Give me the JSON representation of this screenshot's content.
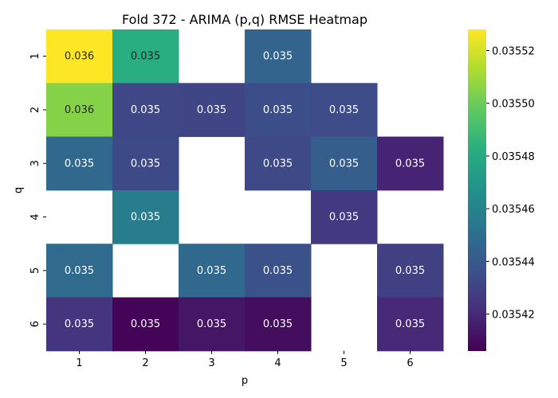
{
  "chart_data": {
    "type": "heatmap",
    "title": "Fold 372 - ARIMA (p,q) RMSE Heatmap",
    "xlabel": "p",
    "ylabel": "q",
    "x_categories": [
      "1",
      "2",
      "3",
      "4",
      "5",
      "6"
    ],
    "y_categories": [
      "1",
      "2",
      "3",
      "4",
      "5",
      "6"
    ],
    "values": [
      [
        0.035528,
        0.035482,
        null,
        0.035445,
        null,
        null
      ],
      [
        0.035505,
        0.035432,
        0.035431,
        0.035435,
        0.035434,
        null
      ],
      [
        0.035447,
        0.035433,
        null,
        0.035433,
        0.035442,
        0.035418
      ],
      [
        null,
        0.035457,
        null,
        null,
        0.035426,
        null
      ],
      [
        0.035448,
        null,
        0.035447,
        0.035436,
        null,
        0.035429
      ],
      [
        0.035424,
        0.035407,
        0.035413,
        0.03541,
        null,
        0.03542
      ]
    ],
    "cell_labels": [
      [
        "0.036",
        "0.035",
        null,
        "0.035",
        null,
        null
      ],
      [
        "0.036",
        "0.035",
        "0.035",
        "0.035",
        "0.035",
        null
      ],
      [
        "0.035",
        "0.035",
        null,
        "0.035",
        "0.035",
        "0.035"
      ],
      [
        null,
        "0.035",
        null,
        null,
        "0.035",
        null
      ],
      [
        "0.035",
        null,
        "0.035",
        "0.035",
        null,
        "0.035"
      ],
      [
        "0.035",
        "0.035",
        "0.035",
        "0.035",
        null,
        "0.035"
      ]
    ],
    "colormap": "viridis",
    "vmin": 0.035406,
    "vmax": 0.035528,
    "colorbar_ticks": [
      0.03542,
      0.03544,
      0.03546,
      0.03548,
      0.0355,
      0.03552
    ],
    "colorbar_tick_labels": [
      "0.03542",
      "0.03544",
      "0.03546",
      "0.03548",
      "0.03550",
      "0.03552"
    ],
    "grid": false,
    "legend": "colorbar-right"
  }
}
